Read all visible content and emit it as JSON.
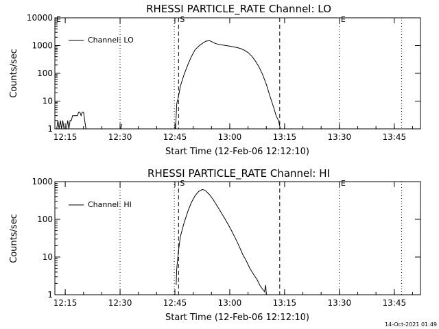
{
  "timestamp": "14-Oct-2021 01:49",
  "chart_data": [
    {
      "type": "line",
      "title": "RHESSI PARTICLE_RATE Channel: LO",
      "xlabel": "Start Time (12-Feb-06 12:12:10)",
      "ylabel": "Counts/sec",
      "yscale": "log",
      "ylim": [
        1,
        10000
      ],
      "xlim": [
        "12:12:10",
        "13:52:10"
      ],
      "x_ticks": [
        "12:15",
        "12:30",
        "12:45",
        "13:00",
        "13:15",
        "13:30",
        "13:45"
      ],
      "y_ticks": [
        "1",
        "10",
        "100",
        "1000",
        "10000"
      ],
      "legend": {
        "position": "top-left",
        "entries": [
          "Channel: LO"
        ]
      },
      "markers": [
        {
          "label": "E",
          "time": "12:12:10",
          "style": "dotted"
        },
        {
          "label": "",
          "time": "12:30:00",
          "style": "dotted"
        },
        {
          "label": "",
          "time": "12:44:50",
          "style": "dotted"
        },
        {
          "label": "S",
          "time": "12:46:00",
          "style": "dashed"
        },
        {
          "label": "",
          "time": "13:13:40",
          "style": "dashed"
        },
        {
          "label": "E",
          "time": "13:30:00",
          "style": "dotted"
        },
        {
          "label": "",
          "time": "13:47:00",
          "style": "dotted"
        }
      ],
      "series": [
        {
          "name": "Channel: LO",
          "segments": [
            {
              "x": [
                "12:12:10",
                "12:12:40",
                "12:13:00",
                "12:13:20",
                "12:13:40",
                "12:14:00",
                "12:14:20",
                "12:14:40",
                "12:15:00",
                "12:15:20",
                "12:15:40",
                "12:16:00",
                "12:16:20",
                "12:16:40",
                "12:17:00",
                "12:17:20",
                "12:17:40",
                "12:18:00",
                "12:18:20",
                "12:18:40",
                "12:19:00",
                "12:19:20",
                "12:19:40",
                "12:20:00",
                "12:20:20",
                "12:20:40",
                "12:21:00"
              ],
              "y": [
                1,
                1,
                2,
                1,
                2,
                1,
                2,
                1,
                1,
                1,
                2,
                1,
                2,
                2,
                3,
                3,
                3,
                3,
                3,
                4,
                4,
                3,
                4,
                4,
                2,
                1,
                1
              ]
            },
            {
              "x": [
                "12:30:10",
                "12:30:30"
              ],
              "y": [
                1,
                1.5
              ]
            },
            {
              "x": [
                "12:45:10",
                "12:45:30",
                "12:46:00",
                "12:46:30",
                "12:47:30",
                "12:48:30",
                "12:49:30",
                "12:50:30",
                "12:51:30",
                "12:52:30",
                "12:53:30",
                "12:54:30",
                "12:55:30",
                "12:56:00",
                "12:57:00",
                "12:58:00",
                "12:59:00",
                "13:00:00",
                "13:01:00",
                "13:02:00",
                "13:03:00",
                "13:04:00",
                "13:05:00",
                "13:06:00",
                "13:07:00",
                "13:08:00",
                "13:09:00",
                "13:10:00",
                "13:11:00",
                "13:12:00",
                "13:12:40",
                "13:13:20",
                "13:13:50",
                "13:14:00"
              ],
              "y": [
                1,
                8,
                15,
                35,
                90,
                200,
                400,
                700,
                950,
                1200,
                1450,
                1500,
                1300,
                1200,
                1100,
                1050,
                1000,
                950,
                900,
                850,
                780,
                680,
                560,
                420,
                280,
                170,
                90,
                40,
                15,
                6,
                3,
                2,
                1,
                1
              ]
            }
          ]
        }
      ]
    },
    {
      "type": "line",
      "title": "RHESSI PARTICLE_RATE Channel: HI",
      "xlabel": "Start Time (12-Feb-06 12:12:10)",
      "ylabel": "Counts/sec",
      "yscale": "log",
      "ylim": [
        1,
        1000
      ],
      "xlim": [
        "12:12:10",
        "13:52:10"
      ],
      "x_ticks": [
        "12:15",
        "12:30",
        "12:45",
        "13:00",
        "13:15",
        "13:30",
        "13:45"
      ],
      "y_ticks": [
        "1",
        "10",
        "100",
        "1000"
      ],
      "legend": {
        "position": "top-left",
        "entries": [
          "Channel: HI"
        ]
      },
      "markers": [
        {
          "label": "",
          "time": "12:30:00",
          "style": "dotted"
        },
        {
          "label": "",
          "time": "12:44:50",
          "style": "dotted"
        },
        {
          "label": "S",
          "time": "12:46:00",
          "style": "dashed"
        },
        {
          "label": "",
          "time": "13:13:40",
          "style": "dashed"
        },
        {
          "label": "E",
          "time": "13:30:00",
          "style": "dotted"
        },
        {
          "label": "",
          "time": "13:47:00",
          "style": "dotted"
        }
      ],
      "series": [
        {
          "name": "Channel: HI",
          "segments": [
            {
              "x": [
                "12:45:20",
                "12:45:30",
                "12:46:00",
                "12:46:30",
                "12:47:30",
                "12:48:30",
                "12:49:30",
                "12:50:30",
                "12:51:30",
                "12:52:30",
                "12:53:00",
                "12:53:30",
                "12:54:30",
                "12:55:30",
                "12:56:30",
                "12:57:30",
                "12:58:30",
                "12:59:30",
                "13:00:30",
                "13:01:30",
                "13:02:30",
                "13:03:30",
                "13:04:30",
                "13:05:30",
                "13:06:30",
                "13:07:30",
                "13:08:20",
                "13:09:00",
                "13:09:30",
                "13:09:50",
                "13:10:00"
              ],
              "y": [
                1.8,
                5,
                15,
                35,
                80,
                160,
                280,
                420,
                550,
                620,
                600,
                560,
                450,
                330,
                230,
                160,
                110,
                75,
                50,
                32,
                20,
                12,
                8,
                5,
                3.5,
                2.5,
                1.7,
                1.4,
                1.2,
                1.8,
                1
              ]
            }
          ]
        }
      ]
    }
  ]
}
